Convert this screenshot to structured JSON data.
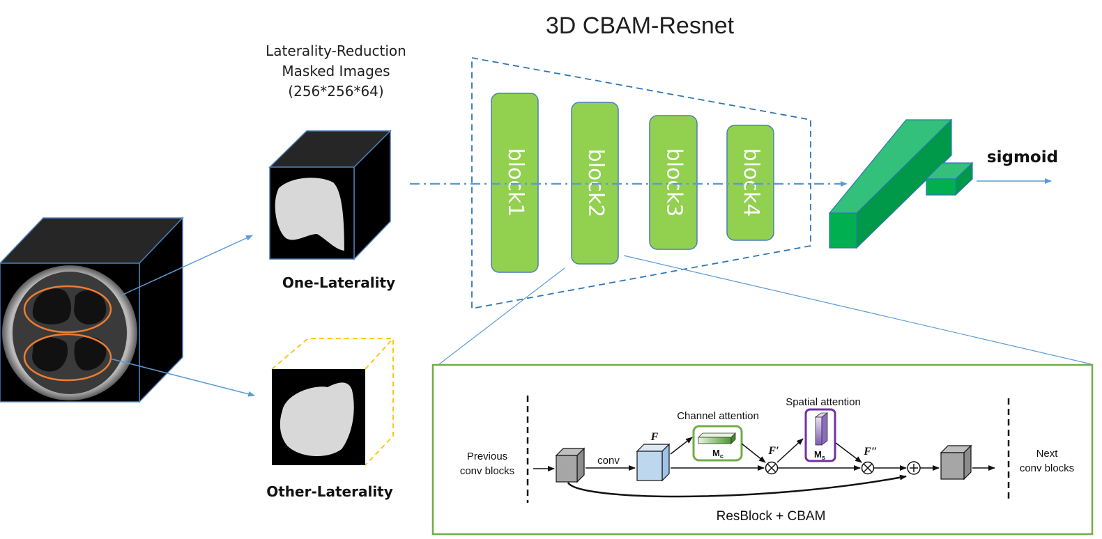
{
  "title": "3D CBAM-Resnet",
  "input_caption": {
    "line1": "Laterality-Reduction",
    "line2": "Masked Images",
    "line3": "(256*256*64)"
  },
  "one_laterality_label": "One-Laterality",
  "other_laterality_label": "Other-Laterality",
  "blocks": [
    "block1",
    "block2",
    "block3",
    "block4"
  ],
  "output_label": "sigmoid",
  "detail": {
    "previous_line1": "Previous",
    "previous_line2": "conv blocks",
    "conv_label": "conv",
    "f_label": "F",
    "channel_attention_label": "Channel attention",
    "mc_label": "M",
    "mc_sub": "c",
    "f_prime_label": "F′",
    "spatial_attention_label": "Spatial attention",
    "ms_label": "M",
    "ms_sub": "s",
    "f_double_prime_label": "F″",
    "next_line1": "Next",
    "next_line2": "conv blocks",
    "caption": "ResBlock + CBAM"
  },
  "colors": {
    "block_green": "#92d050",
    "dense_green": "#00b050",
    "detail_border": "#70ad47",
    "arrow_blue": "#5b9bd5",
    "dashed_yellow": "#ffc000",
    "lung_ring": "#ed7d31",
    "spatial_purple": "#7030a0"
  }
}
